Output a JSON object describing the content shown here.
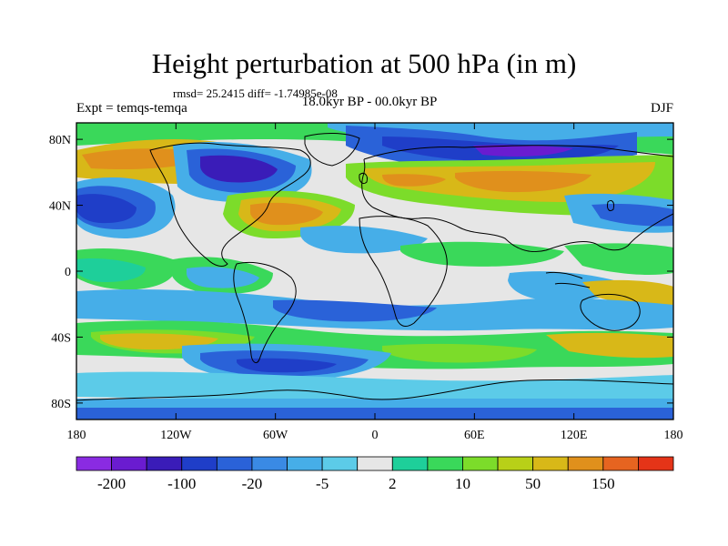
{
  "header": {
    "title": "Height perturbation at 500 hPa (in m)",
    "rmsd": "rmsd= 25.2415 diff= -1.74985e-08",
    "expt": "Expt = temqs-temqa",
    "period": "18.0kyr BP - 00.0kyr BP",
    "season": "DJF"
  },
  "axes": {
    "lat_ticks": [
      "80N",
      "40N",
      "0",
      "40S",
      "80S"
    ],
    "lat_values": [
      80,
      40,
      0,
      -40,
      -80
    ],
    "lon_ticks": [
      "180",
      "120W",
      "60W",
      "0",
      "60E",
      "120E",
      "180"
    ],
    "lon_values": [
      -180,
      -120,
      -60,
      0,
      60,
      120,
      180
    ],
    "lat_range": [
      -90,
      90
    ],
    "lon_range": [
      -180,
      180
    ]
  },
  "colorbar": {
    "colors": [
      "#8a2be2",
      "#6a1cd0",
      "#3a1cb8",
      "#1f3ec8",
      "#2a62d8",
      "#3a8ae4",
      "#46aee8",
      "#5ccbe8",
      "#e6e6e6",
      "#1ecf9a",
      "#3ad85a",
      "#7cdc2a",
      "#b8d018",
      "#d8b818",
      "#e0901c",
      "#e66420",
      "#e43418"
    ],
    "labels": [
      "-200",
      "-100",
      "-20",
      "-5",
      "2",
      "10",
      "50",
      "150"
    ]
  },
  "map": {
    "background_color": "#e6e6e6"
  }
}
